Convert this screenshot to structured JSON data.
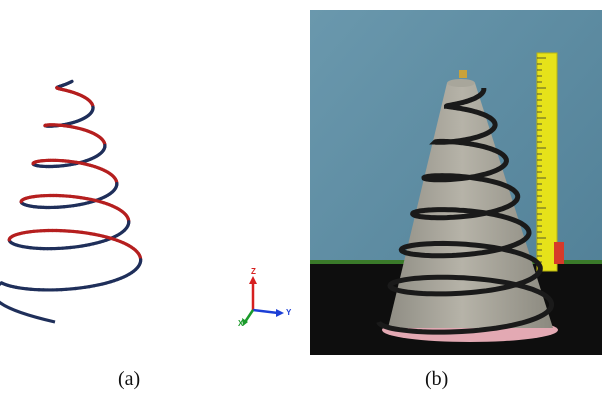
{
  "figure": {
    "caption_a": "(a)",
    "caption_b": "(b)"
  },
  "panel_a": {
    "description_icon": "helix-model-3d",
    "colors": {
      "helix_red": "#b51f1f",
      "helix_navy": "#1f2f5a"
    },
    "axes": {
      "z": "Z",
      "y": "Y",
      "x": "X",
      "colors": {
        "z": "#d61f1f",
        "y": "#1c3fd6",
        "x": "#1a9a2a"
      }
    }
  },
  "panel_b": {
    "description_icon": "concrete-cone-with-spiral-tube-photo",
    "colors": {
      "wall": "#5f8fa6",
      "table": "#111111",
      "cone": "#aaa89e",
      "tube": "#1a1a1a",
      "ruler": "#e6e21a"
    }
  }
}
